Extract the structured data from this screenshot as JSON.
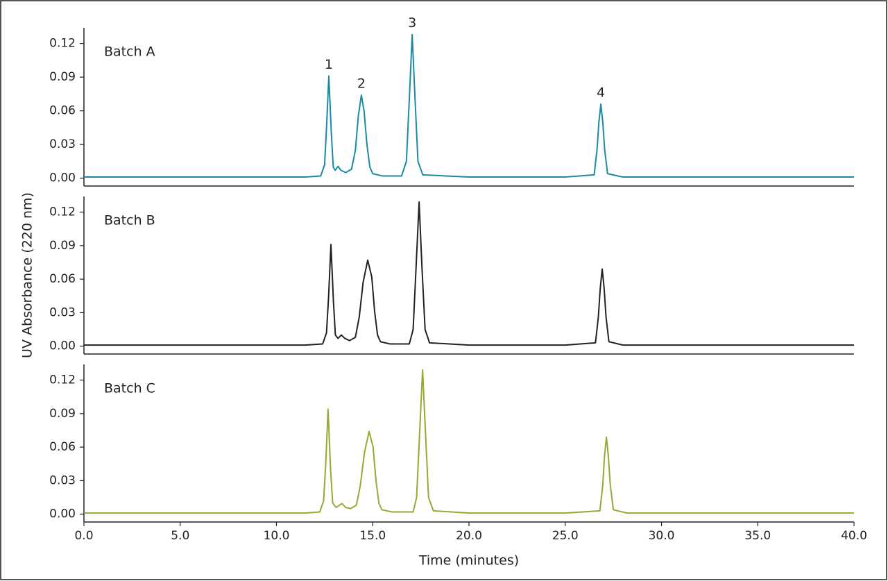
{
  "chart_data": [
    {
      "type": "line",
      "x": [
        0,
        5,
        10,
        11.5,
        12.3,
        12.5,
        12.6,
        12.72,
        12.85,
        12.95,
        13.05,
        13.2,
        13.35,
        13.6,
        13.9,
        14.1,
        14.25,
        14.41,
        14.55,
        14.7,
        14.85,
        15.0,
        15.5,
        16.5,
        16.75,
        16.9,
        17.05,
        17.2,
        17.35,
        17.6,
        20,
        25,
        26.5,
        26.65,
        26.75,
        26.85,
        26.95,
        27.05,
        27.2,
        28,
        35,
        40
      ],
      "series": [
        {
          "name": "Batch A",
          "color": "#1a8aa0",
          "values": [
            0.001,
            0.001,
            0.001,
            0.001,
            0.002,
            0.012,
            0.045,
            0.091,
            0.04,
            0.01,
            0.007,
            0.0105,
            0.007,
            0.005,
            0.008,
            0.025,
            0.055,
            0.074,
            0.06,
            0.03,
            0.01,
            0.004,
            0.002,
            0.002,
            0.015,
            0.07,
            0.128,
            0.07,
            0.015,
            0.003,
            0.001,
            0.001,
            0.003,
            0.025,
            0.05,
            0.066,
            0.05,
            0.025,
            0.004,
            0.001,
            0.001,
            0.001
          ]
        }
      ],
      "annotations": [
        "1",
        "2",
        "3",
        "4"
      ],
      "xlim": [
        0,
        40
      ],
      "ylim": [
        -0.007,
        0.134
      ],
      "yticks": [
        {
          "value": 0,
          "label": "0.00"
        },
        0.03,
        0.06,
        0.09,
        0.12
      ]
    },
    {
      "type": "line",
      "x": [
        0,
        5,
        10,
        11.5,
        12.4,
        12.6,
        12.71,
        12.83,
        12.96,
        13.06,
        13.2,
        13.37,
        13.55,
        13.8,
        14.1,
        14.3,
        14.5,
        14.74,
        14.95,
        15.1,
        15.25,
        15.4,
        15.9,
        16.9,
        17.1,
        17.25,
        17.41,
        17.56,
        17.72,
        17.95,
        20,
        25,
        26.57,
        26.72,
        26.82,
        26.92,
        27.02,
        27.12,
        27.27,
        28,
        35,
        40
      ],
      "series": [
        {
          "name": "Batch B",
          "color": "#222222",
          "values": [
            0.001,
            0.001,
            0.001,
            0.001,
            0.002,
            0.012,
            0.045,
            0.091,
            0.04,
            0.01,
            0.007,
            0.01,
            0.007,
            0.005,
            0.008,
            0.026,
            0.057,
            0.077,
            0.062,
            0.031,
            0.01,
            0.004,
            0.002,
            0.002,
            0.015,
            0.07,
            0.129,
            0.07,
            0.015,
            0.003,
            0.001,
            0.001,
            0.003,
            0.026,
            0.052,
            0.069,
            0.052,
            0.026,
            0.004,
            0.001,
            0.001,
            0.001
          ]
        }
      ],
      "y_label": "UV Absorbance (220 nm)",
      "xlim": [
        0,
        40
      ],
      "ylim": [
        -0.007,
        0.134
      ],
      "yticks": [
        {
          "value": 0,
          "label": "0.00"
        },
        0.03,
        0.06,
        0.09,
        0.12
      ]
    },
    {
      "type": "line",
      "x": [
        0,
        5,
        10,
        11.5,
        12.25,
        12.45,
        12.56,
        12.68,
        12.81,
        12.92,
        13.1,
        13.4,
        13.6,
        13.85,
        14.15,
        14.35,
        14.57,
        14.81,
        15.02,
        15.17,
        15.32,
        15.47,
        16.0,
        17.1,
        17.28,
        17.43,
        17.59,
        17.75,
        17.9,
        18.15,
        20,
        25,
        26.8,
        26.95,
        27.04,
        27.14,
        27.24,
        27.34,
        27.5,
        28.2,
        35,
        40
      ],
      "series": [
        {
          "name": "Batch C",
          "color": "#9aa832",
          "values": [
            0.001,
            0.001,
            0.001,
            0.001,
            0.002,
            0.012,
            0.045,
            0.094,
            0.04,
            0.01,
            0.006,
            0.0095,
            0.006,
            0.005,
            0.008,
            0.025,
            0.055,
            0.074,
            0.06,
            0.03,
            0.01,
            0.004,
            0.002,
            0.002,
            0.015,
            0.07,
            0.129,
            0.07,
            0.015,
            0.003,
            0.001,
            0.001,
            0.003,
            0.026,
            0.052,
            0.069,
            0.052,
            0.026,
            0.004,
            0.001,
            0.001,
            0.001
          ]
        }
      ],
      "x_label": "Time (minutes)",
      "xlim": [
        0,
        40
      ],
      "xticks": [
        {
          "value": 0,
          "label": "0.0"
        },
        {
          "value": 5,
          "label": "5.0"
        },
        {
          "value": 10,
          "label": "10.0"
        },
        {
          "value": 15,
          "label": "15.0"
        },
        {
          "value": 20,
          "label": "20.0"
        },
        {
          "value": 25,
          "label": "25.0"
        },
        {
          "value": 30,
          "label": "30.0"
        },
        {
          "value": 35,
          "label": "35.0"
        },
        {
          "value": 40,
          "label": "40.0"
        }
      ],
      "ylim": [
        -0.007,
        0.134
      ],
      "yticks": [
        {
          "value": 0,
          "label": "0.00"
        },
        0.03,
        0.06,
        0.09,
        0.12
      ]
    }
  ]
}
